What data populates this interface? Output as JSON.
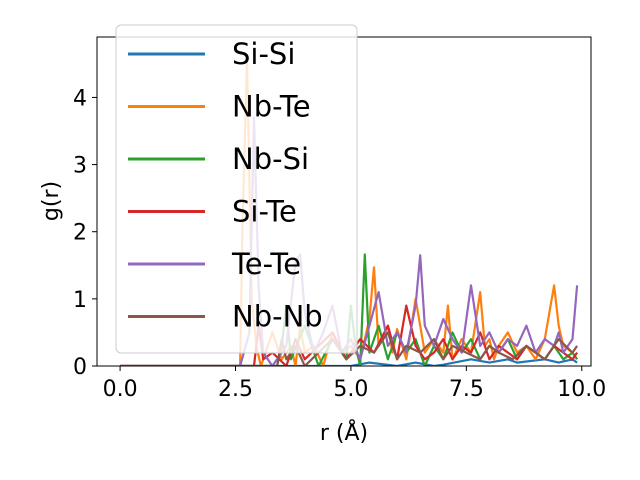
{
  "chart_data": {
    "type": "line",
    "xlabel": "r (Å)",
    "ylabel": "g(r)",
    "xlim": [
      -0.5,
      10.2
    ],
    "ylim": [
      0,
      4.9
    ],
    "xticks": [
      "0.0",
      "2.5",
      "5.0",
      "7.5",
      "10.0"
    ],
    "xtick_values": [
      0,
      2.5,
      5,
      7.5,
      10
    ],
    "yticks": [
      "0",
      "1",
      "2",
      "3",
      "4"
    ],
    "ytick_values": [
      0,
      1,
      2,
      3,
      4
    ],
    "grid": false,
    "legend_position": "top-left",
    "series": [
      {
        "name": "Si-Si",
        "color": "#1f77b4",
        "x": [
          0,
          2.6,
          2.7,
          2.8,
          3.0,
          3.2,
          4.0,
          4.2,
          5.0,
          5.4,
          6.0,
          6.4,
          6.8,
          7.0,
          7.6,
          8.0,
          8.4,
          8.6,
          9.2,
          9.5,
          9.8,
          9.9
        ],
        "y": [
          0,
          0,
          0,
          0,
          0,
          0,
          0,
          0,
          0,
          0.05,
          0,
          0.05,
          0,
          0.02,
          0.1,
          0.05,
          0.1,
          0.05,
          0.1,
          0.05,
          0.1,
          0.05
        ]
      },
      {
        "name": "Nb-Te",
        "color": "#ff7f0e",
        "x": [
          0,
          2.6,
          2.65,
          2.75,
          2.85,
          2.95,
          3.05,
          3.15,
          3.3,
          3.5,
          3.7,
          3.8,
          3.9,
          4.0,
          4.2,
          4.4,
          4.6,
          4.8,
          5.0,
          5.2,
          5.4,
          5.5,
          5.6,
          5.8,
          5.9,
          6.0,
          6.2,
          6.4,
          6.6,
          6.8,
          7.0,
          7.1,
          7.2,
          7.4,
          7.6,
          7.8,
          7.9,
          8.0,
          8.1,
          8.2,
          8.4,
          8.6,
          8.8,
          9.0,
          9.2,
          9.4,
          9.5,
          9.6,
          9.8,
          9.9
        ],
        "y": [
          0,
          0,
          2.0,
          4.6,
          1.0,
          0.3,
          0.0,
          0.2,
          0.5,
          0.1,
          0.3,
          0.0,
          0.6,
          0.2,
          0.3,
          0.0,
          0.5,
          0.2,
          0.3,
          0.1,
          0.7,
          1.47,
          0.3,
          0.6,
          0.2,
          0.55,
          0.1,
          1.0,
          0.2,
          0.4,
          0.2,
          0.9,
          0.1,
          0.4,
          0.2,
          1.1,
          0.3,
          0.4,
          0.1,
          0.3,
          0.5,
          0.2,
          0.3,
          0.1,
          0.4,
          1.2,
          0.6,
          0.3,
          0.2,
          0.1
        ]
      },
      {
        "name": "Nb-Si",
        "color": "#2ca02c",
        "x": [
          0,
          2.6,
          3.4,
          3.5,
          3.6,
          3.7,
          4.0,
          4.3,
          4.6,
          4.9,
          5.0,
          5.1,
          5.2,
          5.3,
          5.4,
          5.6,
          5.8,
          6.0,
          6.2,
          6.4,
          6.6,
          6.8,
          7.0,
          7.2,
          7.4,
          7.6,
          7.8,
          8.0,
          8.2,
          8.4,
          8.6,
          8.8,
          9.0,
          9.2,
          9.4,
          9.6,
          9.8,
          9.9
        ],
        "y": [
          0,
          0,
          0,
          0.3,
          0.9,
          0.1,
          0.6,
          0.0,
          0.4,
          0.1,
          0.9,
          0.3,
          0.0,
          1.66,
          0.2,
          0.6,
          0.1,
          0.5,
          0.2,
          0.4,
          0.0,
          0.3,
          0.1,
          0.5,
          0.2,
          0.4,
          0.1,
          0.3,
          0.2,
          0.4,
          0.1,
          0.3,
          0.2,
          0.1,
          0.3,
          0.1,
          0.2,
          0.1
        ]
      },
      {
        "name": "Si-Te",
        "color": "#d62728",
        "x": [
          0,
          2.6,
          2.9,
          3.0,
          3.1,
          3.3,
          3.6,
          3.8,
          4.0,
          4.3,
          4.6,
          4.9,
          5.2,
          5.5,
          5.8,
          6.0,
          6.2,
          6.4,
          6.6,
          6.8,
          7.0,
          7.2,
          7.4,
          7.6,
          7.8,
          8.0,
          8.2,
          8.4,
          8.6,
          8.8,
          9.0,
          9.2,
          9.4,
          9.6,
          9.8,
          9.9
        ],
        "y": [
          0,
          0,
          0,
          0.6,
          0.1,
          0.2,
          0.0,
          0.4,
          0.1,
          0.3,
          0.5,
          0.1,
          0.4,
          0.2,
          0.6,
          0.1,
          0.9,
          0.3,
          0.1,
          0.2,
          0.4,
          0.1,
          0.3,
          0.2,
          0.5,
          0.1,
          0.3,
          0.2,
          0.1,
          0.3,
          0.2,
          0.1,
          0.3,
          0.2,
          0.1,
          0.2
        ]
      },
      {
        "name": "Te-Te",
        "color": "#9467bd",
        "x": [
          0,
          2.6,
          2.8,
          2.9,
          3.0,
          3.1,
          3.3,
          3.6,
          3.8,
          3.9,
          4.0,
          4.2,
          4.4,
          4.6,
          4.8,
          5.0,
          5.2,
          5.4,
          5.6,
          5.8,
          6.0,
          6.2,
          6.4,
          6.5,
          6.6,
          6.8,
          7.0,
          7.2,
          7.4,
          7.6,
          7.8,
          8.0,
          8.2,
          8.4,
          8.6,
          8.8,
          9.0,
          9.2,
          9.4,
          9.5,
          9.6,
          9.8,
          9.9
        ],
        "y": [
          0,
          0,
          0.5,
          3.7,
          1.2,
          0.2,
          0.0,
          0.3,
          1.55,
          1.66,
          0.8,
          0.2,
          0.5,
          0.9,
          0.2,
          0.4,
          0.1,
          0.6,
          1.1,
          0.3,
          0.5,
          0.2,
          0.9,
          1.65,
          0.6,
          0.3,
          0.7,
          0.4,
          0.2,
          1.2,
          0.3,
          0.5,
          0.2,
          0.4,
          0.3,
          0.6,
          0.2,
          0.4,
          0.3,
          0.5,
          0.2,
          0.4,
          1.2
        ]
      },
      {
        "name": "Nb-Nb",
        "color": "#8c564b",
        "x": [
          0,
          2.6,
          3.4,
          3.5,
          3.6,
          3.8,
          4.0,
          4.3,
          4.6,
          4.9,
          5.2,
          5.5,
          5.8,
          6.0,
          6.2,
          6.5,
          6.8,
          7.0,
          7.2,
          7.5,
          7.8,
          8.0,
          8.2,
          8.5,
          8.8,
          9.0,
          9.2,
          9.5,
          9.8,
          9.9
        ],
        "y": [
          0,
          0,
          0,
          0.4,
          0.1,
          0.3,
          0.0,
          0.2,
          0.4,
          0.1,
          0.3,
          0.2,
          0.5,
          0.1,
          0.3,
          0.2,
          0.4,
          0.1,
          0.3,
          0.2,
          0.1,
          0.3,
          0.2,
          0.1,
          0.3,
          0.2,
          0.1,
          0.4,
          0.2,
          0.3
        ]
      }
    ]
  }
}
